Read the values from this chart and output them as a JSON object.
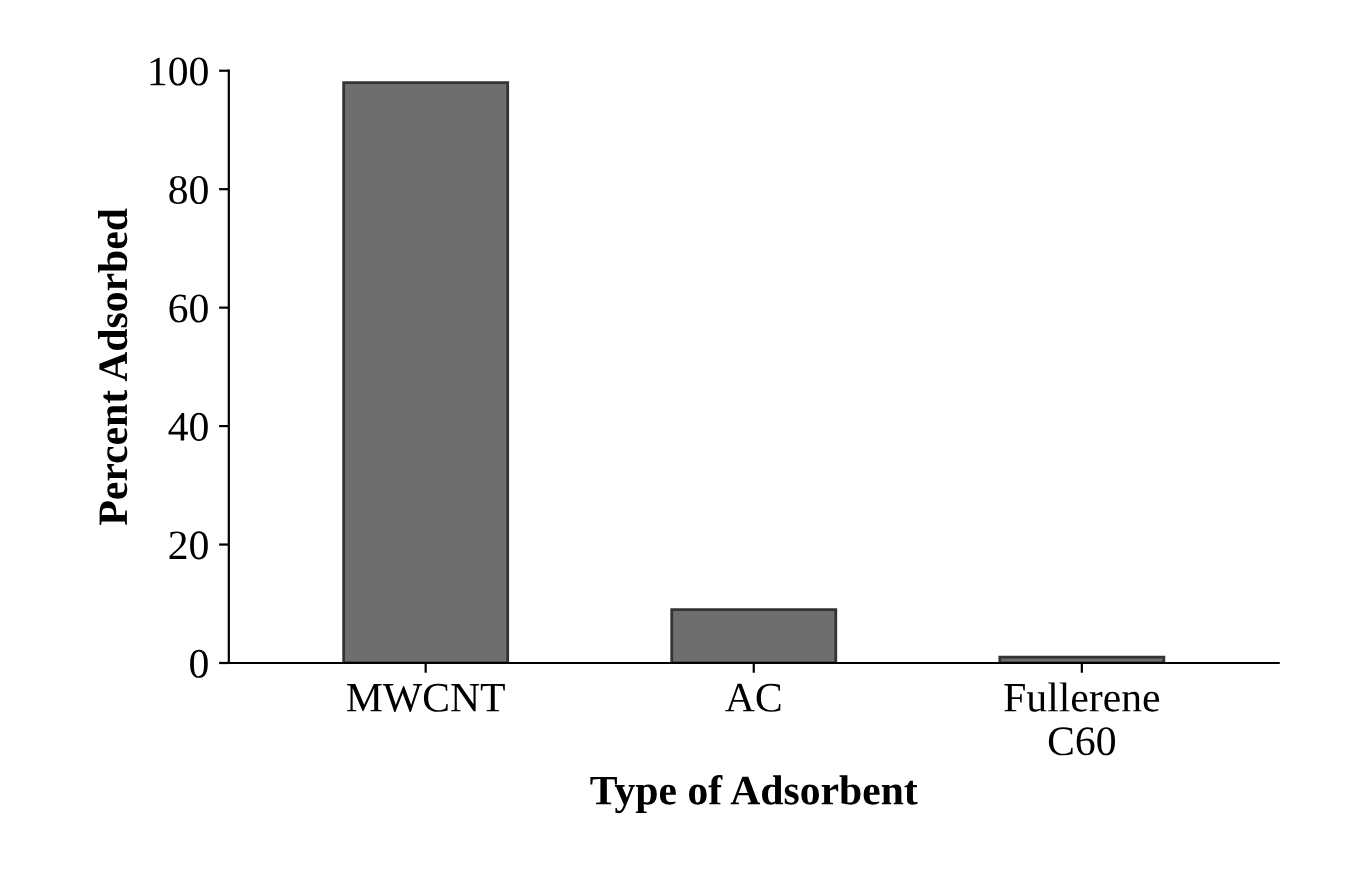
{
  "chart_data": {
    "type": "bar",
    "xlabel": "Type of Adsorbent",
    "ylabel": "Percent Adsorbed",
    "categories": [
      "MWCNT",
      "AC",
      "Fullerene\nC60"
    ],
    "values": [
      98,
      9,
      1
    ],
    "color": "#6e6e6e",
    "ylim": [
      0,
      100
    ],
    "yticks": [
      0,
      20,
      40,
      60,
      80,
      100
    ],
    "grid": false
  }
}
